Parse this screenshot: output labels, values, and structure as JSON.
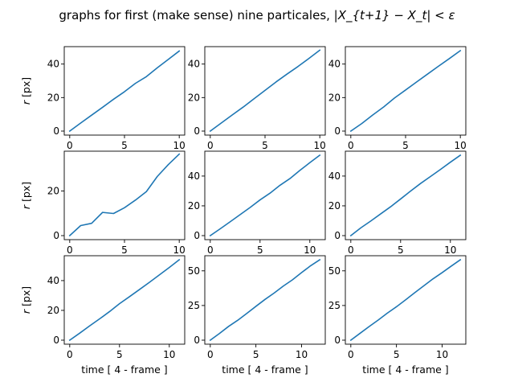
{
  "figure": {
    "suptitle_text": "graphs for first (make sense) nine particales, ",
    "suptitle_math": "|X_{t+1} − X_t| < ε"
  },
  "chart_data": [
    {
      "type": "line",
      "ylabel": "r [px]",
      "xlabel": "",
      "xlim": [
        -0.5,
        10.5
      ],
      "ylim": [
        -2.4,
        50.4
      ],
      "xticks": [
        0,
        5,
        10
      ],
      "yticks": [
        0,
        20,
        40
      ],
      "x": [
        0,
        1,
        2,
        3,
        4,
        5,
        6,
        7,
        8,
        9,
        10
      ],
      "y": [
        0,
        4.8,
        9.5,
        14.2,
        19,
        23.5,
        28.5,
        32.5,
        37.8,
        42.8,
        47.8
      ]
    },
    {
      "type": "line",
      "ylabel": "",
      "xlabel": "",
      "xlim": [
        -0.5,
        10.5
      ],
      "ylim": [
        -2.4,
        50.4
      ],
      "xticks": [
        0,
        5,
        10
      ],
      "yticks": [
        0,
        20,
        40
      ],
      "x": [
        0,
        1,
        2,
        3,
        4,
        5,
        6,
        7,
        8,
        9,
        10
      ],
      "y": [
        0,
        4.8,
        9.6,
        14.3,
        19.3,
        24.3,
        29.3,
        34,
        38.5,
        43.3,
        48.3
      ]
    },
    {
      "type": "line",
      "ylabel": "",
      "xlabel": "",
      "xlim": [
        -0.5,
        10.5
      ],
      "ylim": [
        -2.4,
        50.4
      ],
      "xticks": [
        0,
        5,
        10
      ],
      "yticks": [
        0,
        20,
        40
      ],
      "x": [
        0,
        1,
        2,
        3,
        4,
        5,
        6,
        7,
        8,
        9,
        10
      ],
      "y": [
        0,
        4.5,
        9.6,
        14.4,
        19.8,
        24.5,
        29.3,
        34,
        38.7,
        43.3,
        48
      ]
    },
    {
      "type": "line",
      "ylabel": "r [px]",
      "xlabel": "",
      "xlim": [
        -0.5,
        10.5
      ],
      "ylim": [
        -1.8,
        37.8
      ],
      "xticks": [
        0,
        5,
        10
      ],
      "yticks": [
        0,
        20
      ],
      "x": [
        0,
        1,
        2,
        3,
        4,
        5,
        6,
        7,
        8,
        9,
        10
      ],
      "y": [
        0,
        4.5,
        5.5,
        10.4,
        9.9,
        12.5,
        15.9,
        19.7,
        26.5,
        31.8,
        36.5
      ]
    },
    {
      "type": "line",
      "ylabel": "",
      "xlabel": "",
      "xlim": [
        -0.55,
        11.55
      ],
      "ylim": [
        -2.7,
        56.7
      ],
      "xticks": [
        0,
        5,
        10
      ],
      "yticks": [
        0,
        20,
        40
      ],
      "x": [
        0,
        1,
        2,
        3,
        4,
        5,
        6,
        7,
        8,
        9,
        10,
        11
      ],
      "y": [
        0,
        4.6,
        9.3,
        14.1,
        18.9,
        24,
        28.5,
        33.8,
        38.3,
        43.8,
        49,
        54
      ]
    },
    {
      "type": "line",
      "ylabel": "",
      "xlabel": "",
      "xlim": [
        -0.55,
        11.55
      ],
      "ylim": [
        -2.7,
        56.7
      ],
      "xticks": [
        0,
        5,
        10
      ],
      "yticks": [
        0,
        20,
        40
      ],
      "x": [
        0,
        1,
        2,
        3,
        4,
        5,
        6,
        7,
        8,
        9,
        10,
        11
      ],
      "y": [
        0,
        5.2,
        9.8,
        14.6,
        19.4,
        24.6,
        29.9,
        35,
        39.7,
        44.4,
        49.3,
        54
      ]
    },
    {
      "type": "line",
      "ylabel": "r [px]",
      "xlabel": "time [ 4 - frame ]",
      "xlim": [
        -0.55,
        11.55
      ],
      "ylim": [
        -2.7,
        56.7
      ],
      "xticks": [
        0,
        5,
        10
      ],
      "yticks": [
        0,
        20,
        40
      ],
      "x": [
        0,
        1,
        2,
        3,
        4,
        5,
        6,
        7,
        8,
        9,
        10,
        11
      ],
      "y": [
        0,
        4.7,
        9.6,
        14.3,
        19.2,
        24.5,
        29.2,
        34,
        38.8,
        43.8,
        48.8,
        54
      ]
    },
    {
      "type": "line",
      "ylabel": "",
      "xlabel": "time [ 4 - frame ]",
      "xlim": [
        -0.6,
        12.6
      ],
      "ylim": [
        -2.9,
        60.9
      ],
      "xticks": [
        0,
        5,
        10
      ],
      "yticks": [
        0,
        25,
        50
      ],
      "x": [
        0,
        1,
        2,
        3,
        4,
        5,
        6,
        7,
        8,
        9,
        10,
        11,
        12
      ],
      "y": [
        0,
        4.8,
        9.9,
        14.3,
        19.3,
        24.4,
        29.4,
        34,
        39,
        43.5,
        48.7,
        53.7,
        58
      ]
    },
    {
      "type": "line",
      "ylabel": "",
      "xlabel": "time [ 4 - frame ]",
      "xlim": [
        -0.6,
        12.6
      ],
      "ylim": [
        -2.9,
        60.9
      ],
      "xticks": [
        0,
        5,
        10
      ],
      "yticks": [
        0,
        25,
        50
      ],
      "x": [
        0,
        1,
        2,
        3,
        4,
        5,
        6,
        7,
        8,
        9,
        10,
        11,
        12
      ],
      "y": [
        0,
        4.9,
        9.8,
        14.5,
        19.5,
        24.1,
        29.1,
        34.2,
        39.2,
        44.2,
        48.7,
        53.4,
        58
      ]
    }
  ]
}
